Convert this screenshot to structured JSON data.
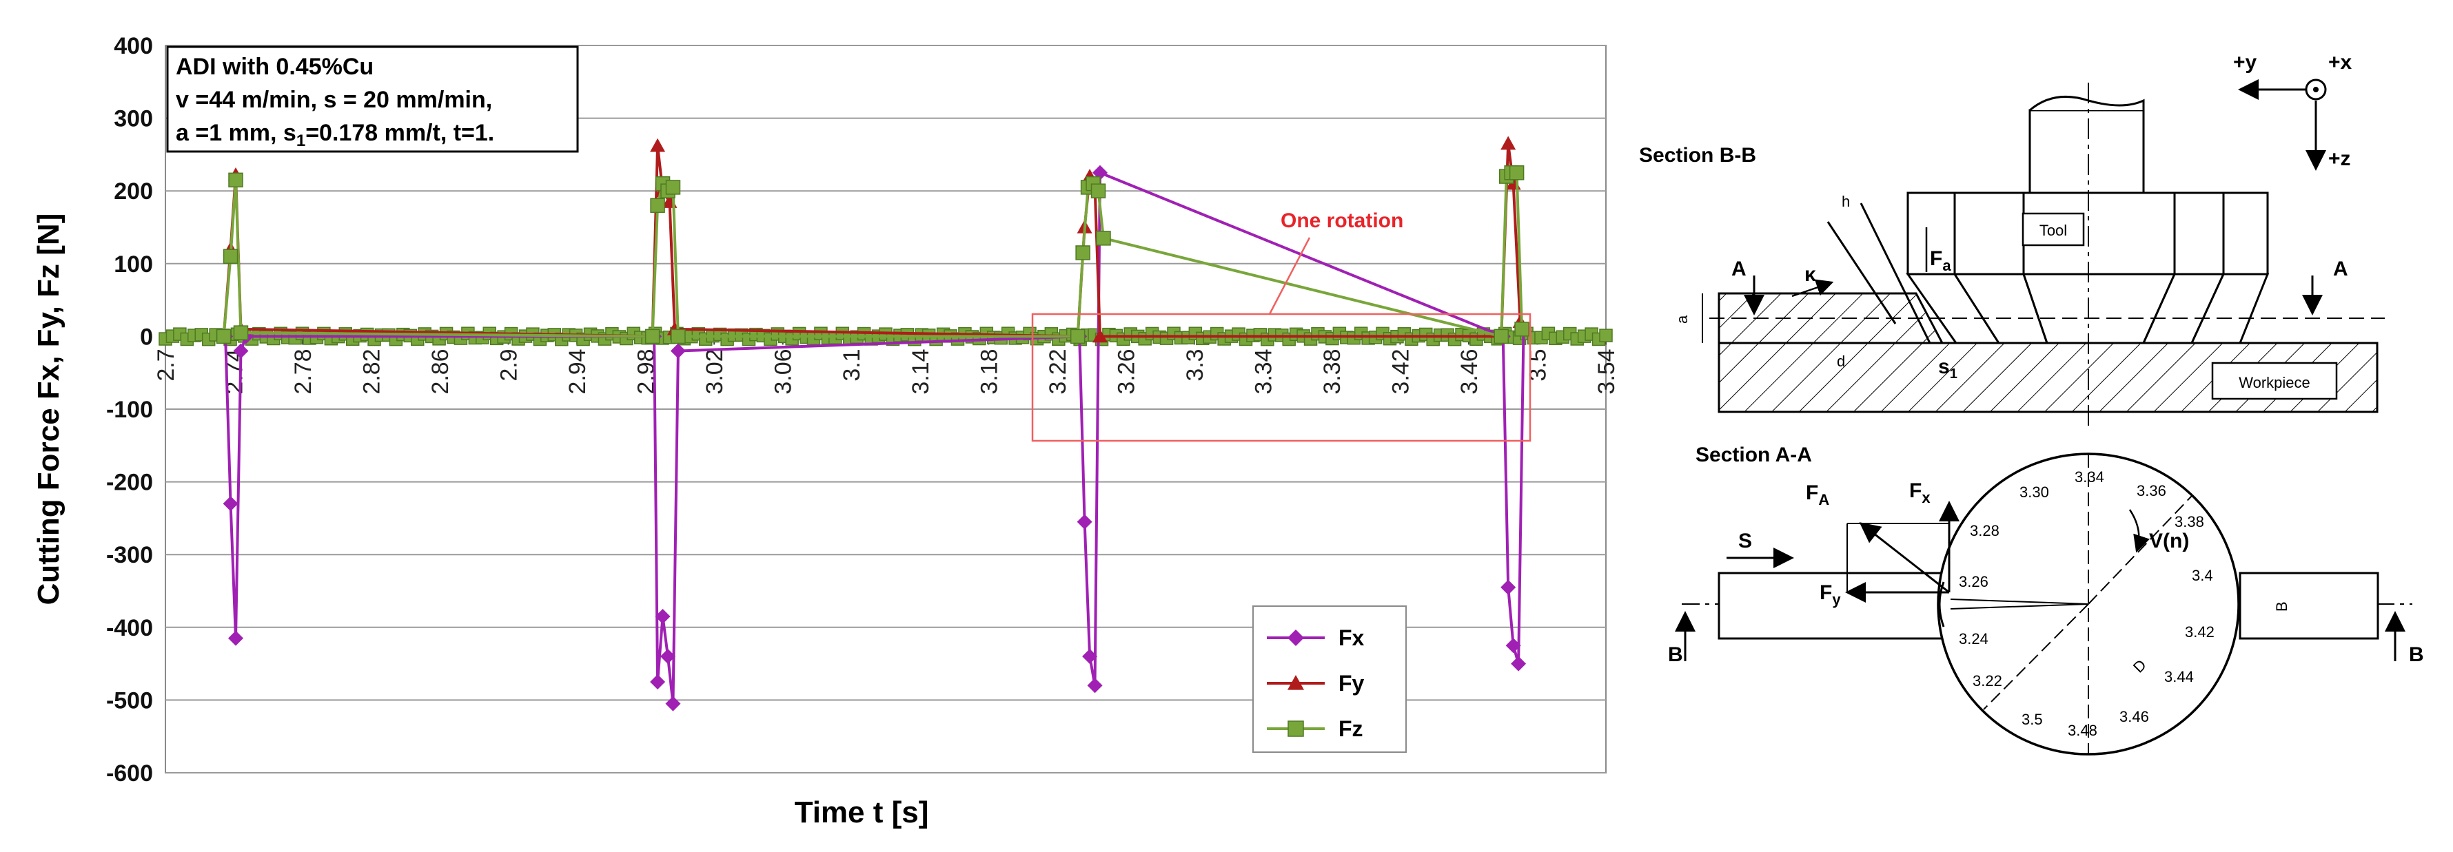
{
  "chart_data": {
    "type": "line",
    "title": "",
    "xlabel": "Time t [s]",
    "ylabel": "Cutting Force Fx, Fy, Fz [N]",
    "xlim": [
      2.7,
      3.54
    ],
    "ylim": [
      -600,
      400
    ],
    "yticks": [
      400,
      300,
      200,
      100,
      0,
      -100,
      -200,
      -300,
      -400,
      -500,
      -600
    ],
    "xtick_labels": [
      "2.7",
      "2.74",
      "2.78",
      "2.82",
      "2.86",
      "2.9",
      "2.94",
      "2.98",
      "3.02",
      "3.06",
      "3.1",
      "3.14",
      "3.18",
      "3.22",
      "3.26",
      "3.3",
      "3.34",
      "3.38",
      "3.42",
      "3.46",
      "3.5",
      "3.54"
    ],
    "grid": "horizontal",
    "legend_position": "bottom-right",
    "info_box": {
      "line1": "ADI with 0.45%Cu",
      "line2": "v =44 m/min, s = 20 mm/min,",
      "line3_a": "a =1 mm, s",
      "line3_sub": "1",
      "line3_b": "=0.178 mm/t, t=1."
    },
    "annotation": "One rotation",
    "series": [
      {
        "name": "Fx",
        "color": "#a020b4",
        "marker": "diamond",
        "x": [
          2.735,
          2.738,
          2.741,
          2.744,
          2.747,
          2.985,
          2.987,
          2.99,
          2.993,
          2.996,
          2.999,
          3.233,
          3.236,
          3.239,
          3.242,
          3.245,
          3.48,
          3.483,
          3.486,
          3.489,
          3.492
        ],
        "y": [
          0,
          -230,
          -415,
          -20,
          0,
          0,
          -475,
          -385,
          -440,
          -505,
          -20,
          0,
          -255,
          -440,
          -480,
          225,
          0,
          -345,
          -425,
          -450,
          10
        ]
      },
      {
        "name": "Fy",
        "color": "#b01c1c",
        "marker": "triangle",
        "x": [
          2.734,
          2.738,
          2.741,
          2.744,
          2.984,
          2.987,
          2.99,
          2.994,
          2.997,
          3.232,
          3.236,
          3.239,
          3.242,
          3.245,
          3.479,
          3.483,
          3.486,
          3.49
        ],
        "y": [
          0,
          120,
          222,
          10,
          0,
          262,
          200,
          185,
          10,
          0,
          150,
          220,
          205,
          0,
          0,
          265,
          210,
          20
        ]
      },
      {
        "name": "Fz",
        "color": "#78a63a",
        "marker": "square",
        "x": [
          2.734,
          2.738,
          2.741,
          2.744,
          2.984,
          2.987,
          2.99,
          2.993,
          2.996,
          2.999,
          3.232,
          3.235,
          3.238,
          3.241,
          3.244,
          3.247,
          3.479,
          3.482,
          3.485,
          3.488,
          3.491
        ],
        "y": [
          0,
          110,
          215,
          5,
          0,
          180,
          210,
          200,
          205,
          0,
          0,
          115,
          205,
          210,
          200,
          135,
          0,
          220,
          225,
          225,
          10
        ]
      }
    ]
  },
  "diagram": {
    "axes": {
      "y": "+y",
      "x": "+x",
      "z": "+z"
    },
    "section_bb": "Section B-B",
    "section_aa": "Section A-A",
    "tool": "Tool",
    "workpiece": "Workpiece",
    "fa": "F",
    "fa_sub": "a",
    "kappa": "κ",
    "h": "h",
    "d": "d",
    "a": "a",
    "s1": "s",
    "s1_sub": "1",
    "letter_a": "A",
    "letter_b": "B",
    "letter_s": "S",
    "force_fa": "F",
    "force_fa_sub": "A",
    "force_fx": "F",
    "force_fx_sub": "x",
    "force_fy": "F",
    "force_fy_sub": "y",
    "v_n": "V(n)",
    "d_cap": "D",
    "b_cap": "B",
    "rim_times": [
      "3.34",
      "3.36",
      "3.38",
      "3.4",
      "3.42",
      "3.44",
      "3.46",
      "3.48",
      "3.5",
      "3.22",
      "3.24",
      "3.26",
      "3.28",
      "3.30"
    ]
  }
}
